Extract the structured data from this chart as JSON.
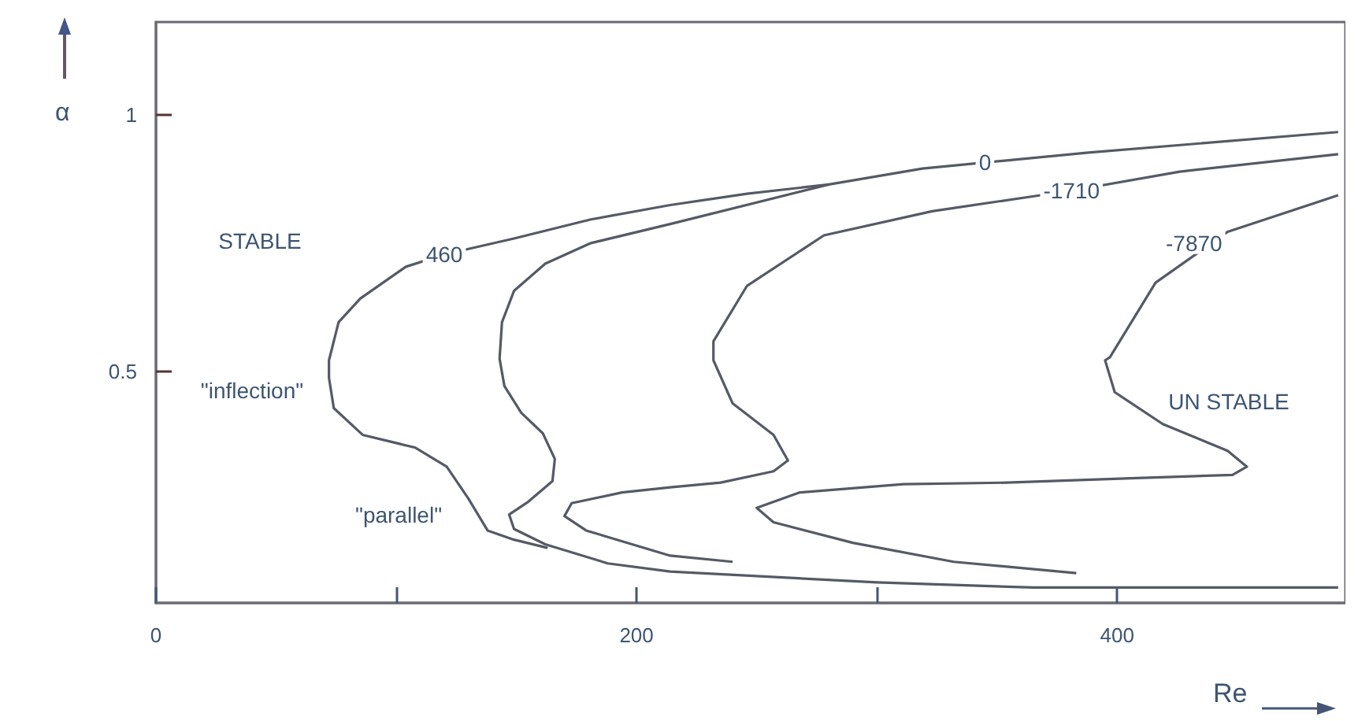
{
  "chart_data": {
    "type": "line",
    "xlabel": "Re",
    "ylabel": "α",
    "xlim": [
      0,
      495
    ],
    "ylim": [
      0.05,
      1.18
    ],
    "xticks": [
      0,
      {
        "value": 100,
        "label": null
      },
      200,
      {
        "value": 300,
        "label": null
      },
      400
    ],
    "yticks": [
      0.5,
      1
    ],
    "grid": false,
    "marker": "none",
    "series": [
      {
        "color": "#555a66",
        "x": [
          280,
          246,
          214,
          181,
          149,
          120,
          104,
          85,
          76,
          72,
          72,
          74,
          86,
          108,
          121,
          130,
          138,
          149,
          163
        ],
        "values": [
          0.864,
          0.846,
          0.824,
          0.796,
          0.759,
          0.728,
          0.704,
          0.642,
          0.596,
          0.522,
          0.488,
          0.429,
          0.377,
          0.352,
          0.315,
          0.253,
          0.191,
          0.173,
          0.157
        ]
      },
      {
        "color": "#555a66",
        "x": [
          492,
          388,
          319,
          280,
          214,
          181,
          162,
          149,
          144,
          143,
          145,
          152,
          161,
          166,
          165,
          155,
          147,
          149,
          162,
          188,
          214,
          300,
          365,
          492
        ],
        "values": [
          0.966,
          0.926,
          0.895,
          0.864,
          0.787,
          0.75,
          0.71,
          0.657,
          0.596,
          0.525,
          0.472,
          0.42,
          0.38,
          0.33,
          0.287,
          0.247,
          0.222,
          0.194,
          0.164,
          0.127,
          0.111,
          0.09,
          0.08,
          0.08
        ]
      },
      {
        "color": "#555a66",
        "x": [
          492,
          426,
          381,
          323,
          278,
          246,
          232,
          232,
          240,
          257,
          263,
          257,
          235,
          214,
          194,
          173,
          170,
          179,
          214,
          240
        ],
        "values": [
          0.923,
          0.889,
          0.852,
          0.812,
          0.765,
          0.667,
          0.559,
          0.522,
          0.438,
          0.377,
          0.327,
          0.306,
          0.284,
          0.275,
          0.265,
          0.244,
          0.219,
          0.191,
          0.142,
          0.13
        ]
      },
      {
        "color": "#555a66",
        "x": [
          492,
          446,
          416,
          397,
          395,
          399,
          419,
          446,
          454,
          448,
          408,
          354,
          311,
          268,
          250,
          257,
          290,
          332,
          383
        ],
        "values": [
          0.843,
          0.772,
          0.673,
          0.528,
          0.522,
          0.46,
          0.398,
          0.346,
          0.315,
          0.299,
          0.293,
          0.284,
          0.281,
          0.265,
          0.235,
          0.207,
          0.167,
          0.13,
          0.108
        ]
      }
    ],
    "annotations": [
      {
        "text": "460",
        "x": 120,
        "y": 0.728
      },
      {
        "text": "0",
        "x": 345,
        "y": 0.907
      },
      {
        "text": "-1710",
        "x": 381,
        "y": 0.852
      },
      {
        "text": "-7870",
        "x": 432,
        "y": 0.75
      },
      "STABLE",
      "\"inflection\"",
      "\"parallel\"",
      "UN STABLE"
    ]
  }
}
